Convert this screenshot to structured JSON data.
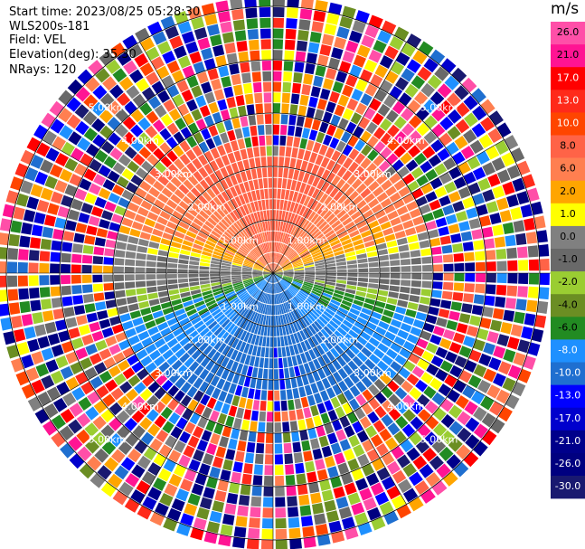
{
  "header": {
    "start_time": "Start time: 2023/08/25 05:28:30",
    "instrument": "WLS200s-181",
    "field": "Field: VEL",
    "elevation": "Elevation(deg): 35.30",
    "nrays": "NRays: 120"
  },
  "chart_data": {
    "type": "ppi",
    "field": "VEL",
    "units": "m/s",
    "nrays": 120,
    "elevation_deg": 35.3,
    "max_range_km": 5.2,
    "range_rings_km": [
      1,
      2,
      3,
      4,
      5
    ],
    "ring_labels": [
      "1.00km",
      "2.00km",
      "3.00km",
      "4.00km",
      "5.00km"
    ],
    "clean_range_km": 3.0,
    "colorbar": {
      "ticks": [
        "26.0",
        "21.0",
        "17.0",
        "13.0",
        "10.0",
        "8.0",
        "6.0",
        "2.0",
        "1.0",
        "0.0",
        "-1.0",
        "-2.0",
        "-4.0",
        "-6.0",
        "-8.0",
        "-10.0",
        "-13.0",
        "-17.0",
        "-21.0",
        "-26.0",
        "-30.0"
      ],
      "bins": [
        {
          "range": [
            26,
            30
          ],
          "color": "#ff4fa8"
        },
        {
          "range": [
            21,
            26
          ],
          "color": "#ff1493"
        },
        {
          "range": [
            17,
            21
          ],
          "color": "#ff0000"
        },
        {
          "range": [
            13,
            17
          ],
          "color": "#ff2a1a"
        },
        {
          "range": [
            10,
            13
          ],
          "color": "#ff4500"
        },
        {
          "range": [
            8,
            10
          ],
          "color": "#ff6347"
        },
        {
          "range": [
            6,
            8
          ],
          "color": "#ff7f50"
        },
        {
          "range": [
            2,
            6
          ],
          "color": "#ffa500"
        },
        {
          "range": [
            1,
            2
          ],
          "color": "#ffff00"
        },
        {
          "range": [
            0,
            1
          ],
          "color": "#808080"
        },
        {
          "range": [
            -1,
            0
          ],
          "color": "#696969"
        },
        {
          "range": [
            -2,
            -1
          ],
          "color": "#9acd32"
        },
        {
          "range": [
            -4,
            -2
          ],
          "color": "#6b8e23"
        },
        {
          "range": [
            -6,
            -4
          ],
          "color": "#228b22"
        },
        {
          "range": [
            -8,
            -6
          ],
          "color": "#1e90ff"
        },
        {
          "range": [
            -10,
            -8
          ],
          "color": "#1f6fd0"
        },
        {
          "range": [
            -13,
            -10
          ],
          "color": "#0000ff"
        },
        {
          "range": [
            -17,
            -13
          ],
          "color": "#0000cd"
        },
        {
          "range": [
            -21,
            -17
          ],
          "color": "#00008b"
        },
        {
          "range": [
            -26,
            -21
          ],
          "color": "#000080"
        },
        {
          "range": [
            -30,
            -26
          ],
          "color": "#191970"
        }
      ]
    }
  }
}
